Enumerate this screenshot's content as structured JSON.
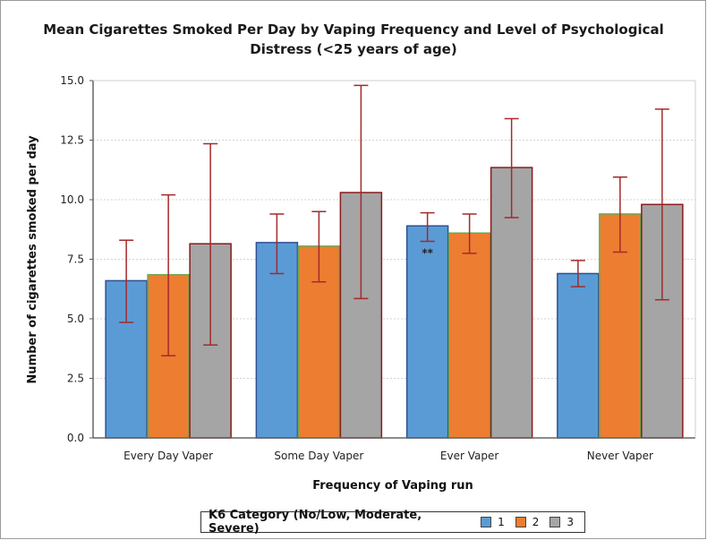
{
  "chart_data": {
    "type": "bar",
    "title": "Mean Cigarettes Smoked Per Day by Vaping Frequency and Level of Psychological Distress (<25 years of age)",
    "xlabel": "Frequency of Vaping run",
    "ylabel": "Number of cigarettes smoked per day",
    "categories": [
      "Every Day Vaper",
      "Some Day Vaper",
      "Ever Vaper",
      "Never Vaper"
    ],
    "ylim": [
      0,
      15
    ],
    "yticks": [
      "0.0",
      "2.5",
      "5.0",
      "7.5",
      "10.0",
      "12.5",
      "15.0"
    ],
    "grid": true,
    "legend_title": "K6 Category (No/Low, Moderate, Severe)",
    "legend_position": "bottom",
    "series": [
      {
        "name": "1",
        "color": "#5b9bd5",
        "border": "#2f4f8f",
        "values": [
          6.6,
          8.2,
          8.9,
          6.9
        ],
        "lower": [
          4.85,
          6.9,
          8.25,
          6.35
        ],
        "upper": [
          8.3,
          9.4,
          9.45,
          7.45
        ]
      },
      {
        "name": "2",
        "color": "#ed7d31",
        "border": "#6aa84f",
        "values": [
          6.85,
          8.05,
          8.6,
          9.4
        ],
        "lower": [
          3.45,
          6.55,
          7.75,
          7.8
        ],
        "upper": [
          10.2,
          9.5,
          9.4,
          10.95
        ]
      },
      {
        "name": "3",
        "color": "#a5a5a5",
        "border": "#8b1a1a",
        "values": [
          8.15,
          10.3,
          11.35,
          9.8
        ],
        "lower": [
          3.9,
          5.85,
          9.25,
          5.8
        ],
        "upper": [
          12.35,
          14.8,
          13.4,
          13.8
        ]
      }
    ],
    "annotations": [
      {
        "category": "Ever Vaper",
        "series": "1",
        "text": "**"
      }
    ],
    "errorbar_color": "#a52a2a"
  }
}
